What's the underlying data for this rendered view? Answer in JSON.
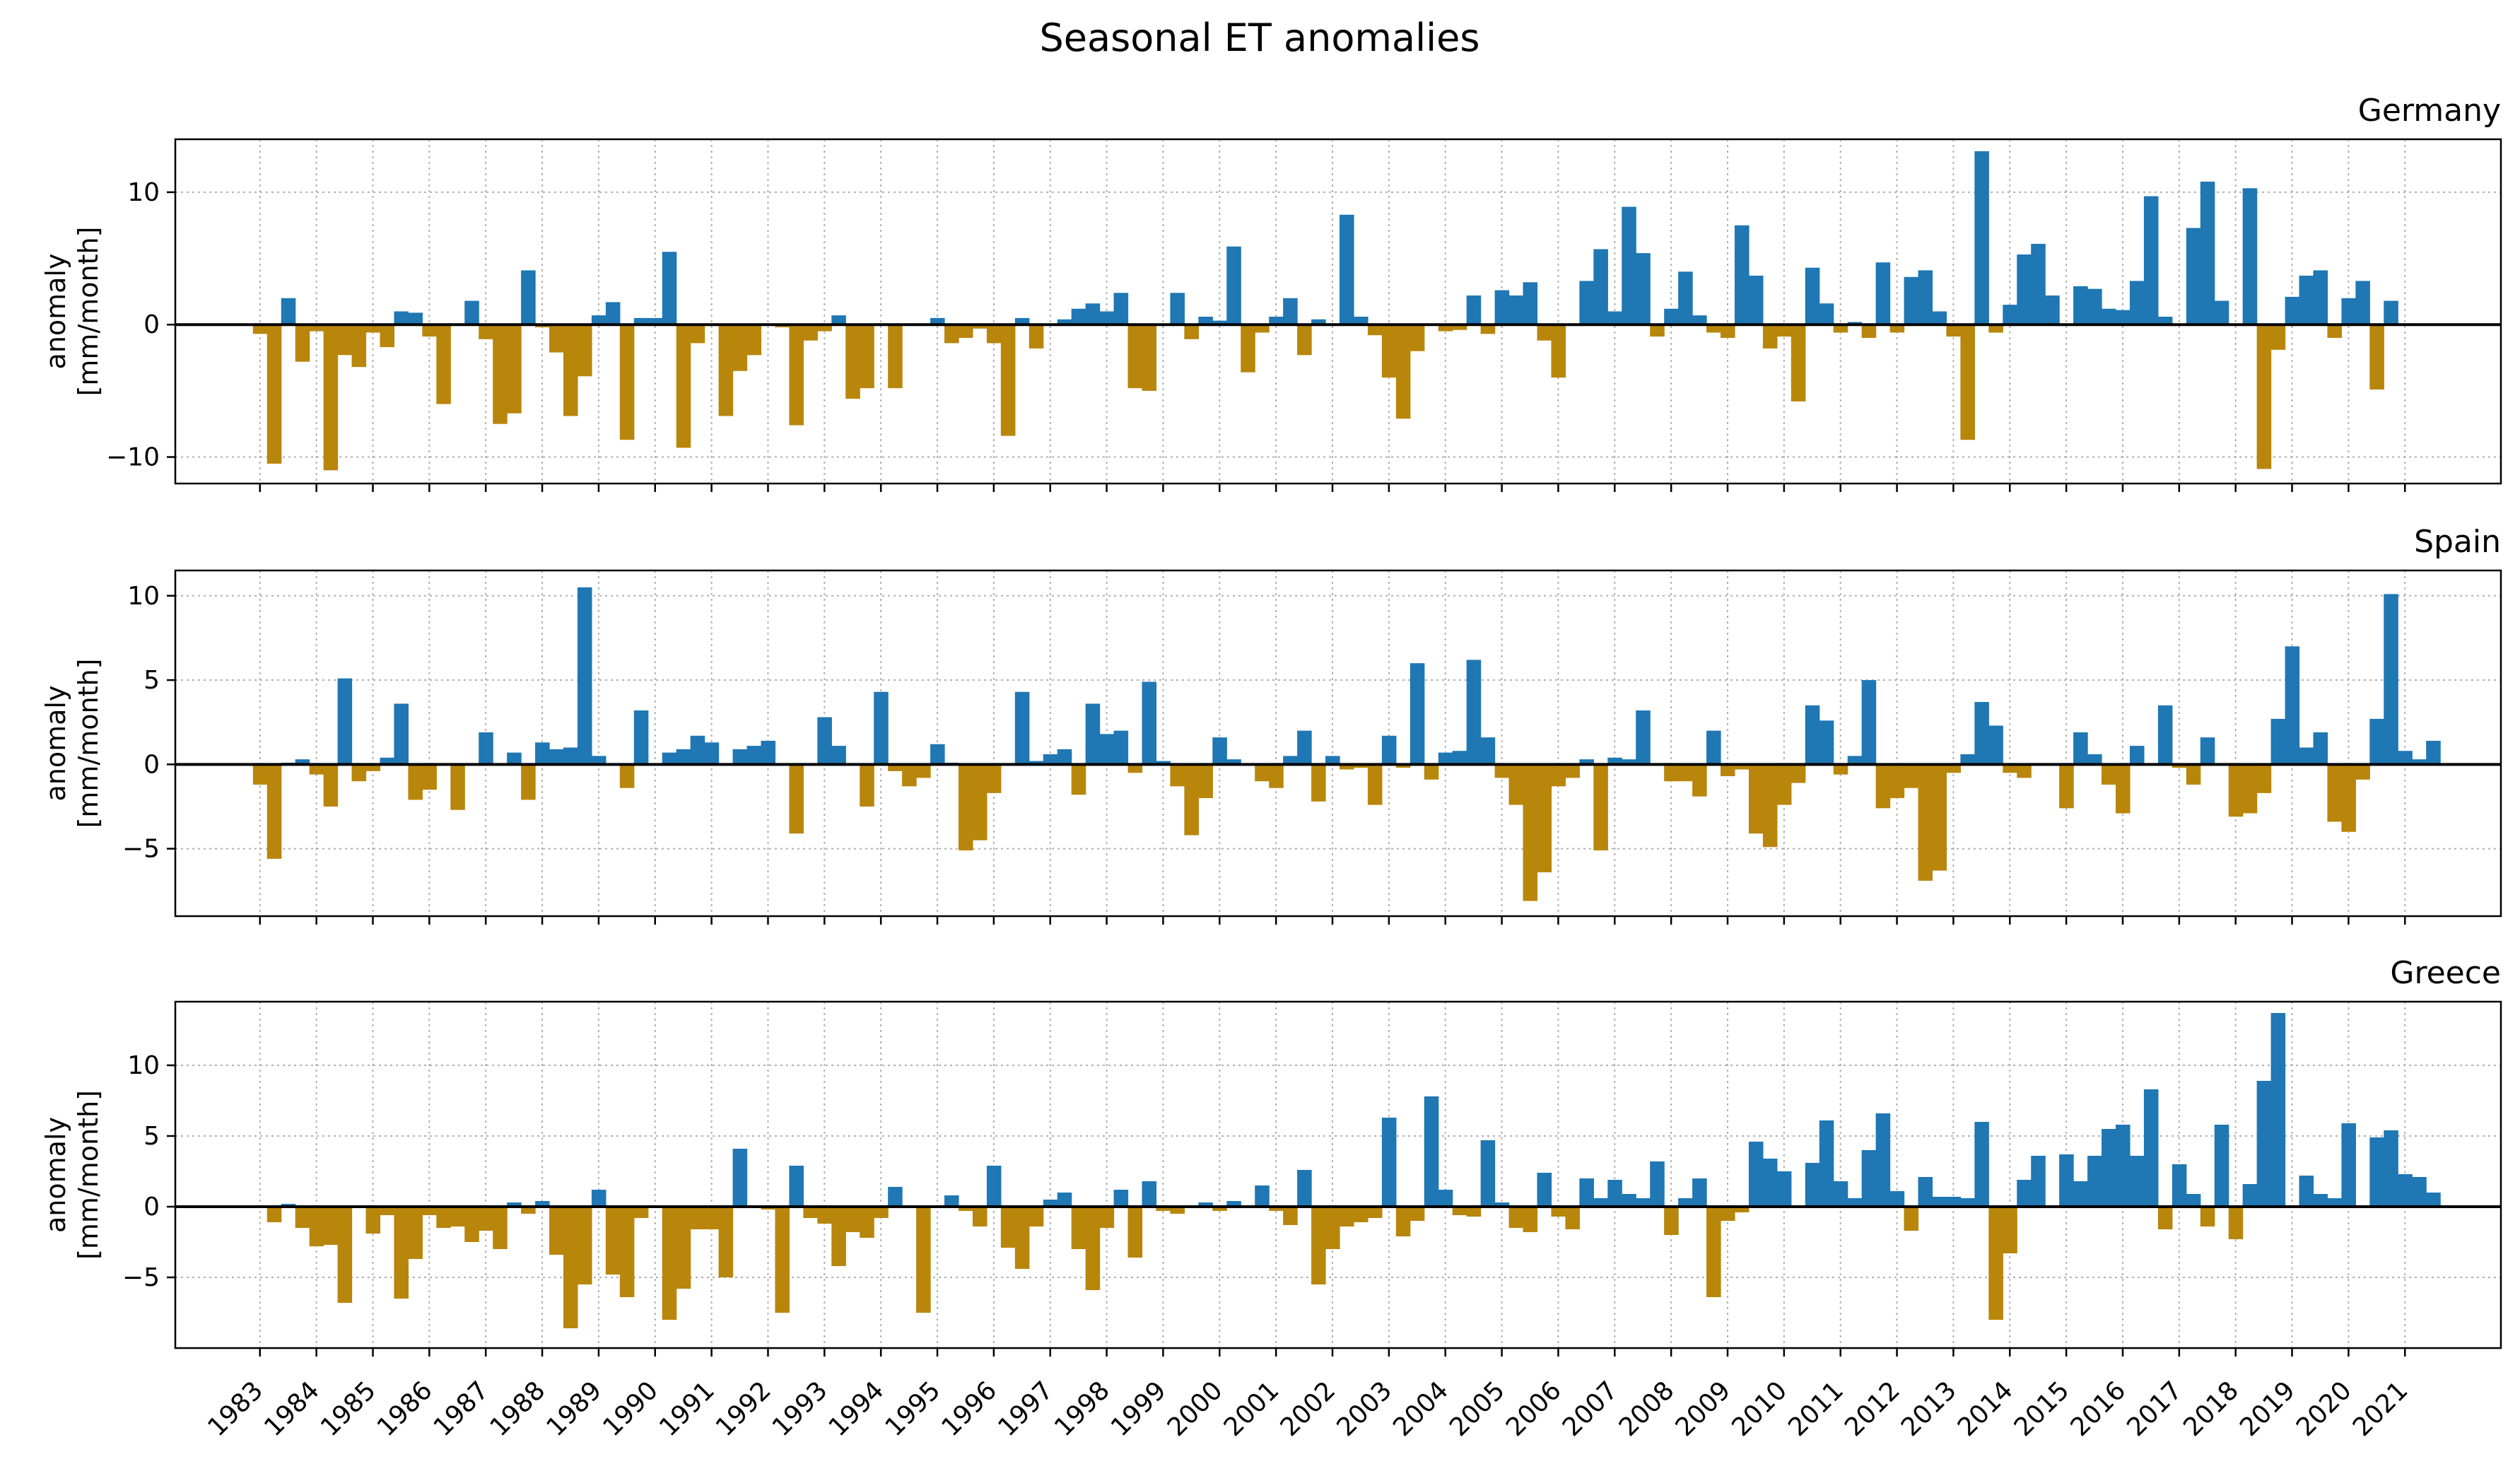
{
  "figure": {
    "title": "Seasonal ET anomalies",
    "colors": {
      "positive": "#1f77b4",
      "negative": "#b8860b",
      "zero_line": "#000000",
      "grid": "#b0b0b0"
    },
    "grid": true
  },
  "chart_data": [
    {
      "type": "bar",
      "title": "Germany",
      "ylabel": "anomaly\n[mm/month]",
      "x_tick_labels": [
        "1983",
        "1984",
        "1985",
        "1986",
        "1987",
        "1988",
        "1989",
        "1990",
        "1991",
        "1992",
        "1993",
        "1994",
        "1995",
        "1996",
        "1997",
        "1998",
        "1999",
        "2000",
        "2001",
        "2002",
        "2003",
        "2004",
        "2005",
        "2006",
        "2007",
        "2008",
        "2009",
        "2010",
        "2011",
        "2012",
        "2013",
        "2014",
        "2015",
        "2016",
        "2017",
        "2018",
        "2019",
        "2020",
        "2021"
      ],
      "show_x_tick_labels": false,
      "ylim": [
        -12,
        14
      ],
      "yticks": [
        -10,
        0,
        10
      ],
      "ytick_labels": [
        "−10",
        "0",
        "10"
      ],
      "bar_positions": "4 bars per year, 1983.0 to 2021.0 step 0.25",
      "values": [
        -0.7,
        -10.5,
        2.0,
        -2.8,
        -0.5,
        -11.0,
        -2.3,
        -3.2,
        -0.6,
        -1.7,
        1.0,
        0.9,
        -0.9,
        -6.0,
        0.0,
        1.8,
        -1.1,
        -7.5,
        -6.7,
        4.1,
        -0.2,
        -2.1,
        -6.9,
        -3.9,
        0.7,
        1.7,
        -8.7,
        0.5,
        0.5,
        5.5,
        -9.3,
        -1.4,
        0.0,
        -6.9,
        -3.5,
        -2.3,
        0.0,
        -0.2,
        -7.6,
        -1.2,
        -0.5,
        0.7,
        -5.6,
        -4.8,
        0.1,
        -4.8,
        0.0,
        0.0,
        0.5,
        -1.4,
        -1.0,
        -0.3,
        -1.4,
        -8.4,
        0.5,
        -1.8,
        0.0,
        0.4,
        1.2,
        1.6,
        1.0,
        2.4,
        -4.8,
        -5.0,
        0.0,
        2.4,
        -1.1,
        0.6,
        0.3,
        5.9,
        -3.6,
        -0.6,
        0.6,
        2.0,
        -2.3,
        0.4,
        0.1,
        8.3,
        0.6,
        -0.8,
        -4.0,
        -7.1,
        -2.0,
        0.0,
        -0.5,
        -0.4,
        2.2,
        -0.7,
        2.6,
        2.2,
        3.2,
        -1.2,
        -4.0,
        0.0,
        3.3,
        5.7,
        1.0,
        8.9,
        5.4,
        -0.9,
        1.2,
        4.0,
        0.7,
        -0.6,
        -1.0,
        7.5,
        3.7,
        -1.8,
        -0.9,
        -5.8,
        4.3,
        1.6,
        -0.6,
        0.2,
        -1.0,
        4.7,
        -0.6,
        3.6,
        4.1,
        1.0,
        -0.9,
        -8.7,
        13.1,
        -0.6,
        1.5,
        5.3,
        6.1,
        2.2,
        0.0,
        2.9,
        2.7,
        1.2,
        1.1,
        3.3,
        9.7,
        0.6,
        0.0,
        7.3,
        10.8,
        1.8,
        0.0,
        10.3,
        -10.9,
        -1.9,
        2.1,
        3.7,
        4.1,
        -1.0,
        2.0,
        3.3,
        -4.9,
        1.8,
        0.1
      ]
    },
    {
      "type": "bar",
      "title": "Spain",
      "ylabel": "anomaly\n[mm/month]",
      "x_tick_labels": [
        "1983",
        "1984",
        "1985",
        "1986",
        "1987",
        "1988",
        "1989",
        "1990",
        "1991",
        "1992",
        "1993",
        "1994",
        "1995",
        "1996",
        "1997",
        "1998",
        "1999",
        "2000",
        "2001",
        "2002",
        "2003",
        "2004",
        "2005",
        "2006",
        "2007",
        "2008",
        "2009",
        "2010",
        "2011",
        "2012",
        "2013",
        "2014",
        "2015",
        "2016",
        "2017",
        "2018",
        "2019",
        "2020",
        "2021"
      ],
      "show_x_tick_labels": false,
      "ylim": [
        -9,
        11.5
      ],
      "yticks": [
        -5,
        0,
        5,
        10
      ],
      "ytick_labels": [
        "−5",
        "0",
        "5",
        "10"
      ],
      "bar_positions": "4 bars per year, 1983.0 to 2021.0 step 0.25",
      "values": [
        -1.2,
        -5.6,
        0.1,
        0.3,
        -0.6,
        -2.5,
        5.1,
        -1.0,
        -0.4,
        0.4,
        3.6,
        -2.1,
        -1.5,
        0.0,
        -2.7,
        0.0,
        1.9,
        0.0,
        0.7,
        -2.1,
        1.3,
        0.9,
        1.0,
        10.5,
        0.5,
        0.0,
        -1.4,
        3.2,
        0.0,
        0.7,
        0.9,
        1.7,
        1.3,
        0.0,
        0.9,
        1.1,
        1.4,
        0.0,
        -4.1,
        0.0,
        2.8,
        1.1,
        0.0,
        -2.5,
        4.3,
        -0.4,
        -1.3,
        -0.8,
        1.2,
        0.1,
        -5.1,
        -4.5,
        -1.7,
        0.0,
        4.3,
        0.2,
        0.6,
        0.9,
        -1.8,
        3.6,
        1.8,
        2.0,
        -0.5,
        4.9,
        0.2,
        -1.3,
        -4.2,
        -2.0,
        1.6,
        0.3,
        0.0,
        -1.0,
        -1.4,
        0.5,
        2.0,
        -2.2,
        0.5,
        -0.3,
        -0.2,
        -2.4,
        1.7,
        -0.2,
        6.0,
        -0.9,
        0.7,
        0.8,
        6.2,
        1.6,
        -0.8,
        -2.4,
        -8.1,
        -6.4,
        -1.3,
        -0.8,
        0.3,
        -5.1,
        0.4,
        0.3,
        3.2,
        0.0,
        -1.0,
        -1.0,
        -1.9,
        2.0,
        -0.7,
        -0.3,
        -4.1,
        -4.9,
        -2.4,
        -1.1,
        3.5,
        2.6,
        -0.6,
        0.5,
        5.0,
        -2.6,
        -2.0,
        -1.4,
        -6.9,
        -6.3,
        -0.5,
        0.6,
        3.7,
        2.3,
        -0.5,
        -0.8,
        0.0,
        0.0,
        -2.6,
        1.9,
        0.6,
        -1.2,
        -2.9,
        1.1,
        0.0,
        3.5,
        -0.2,
        -1.2,
        1.6,
        0.0,
        -3.1,
        -2.9,
        -1.7,
        2.7,
        7.0,
        1.0,
        1.9,
        -3.4,
        -4.0,
        -0.9,
        2.7,
        10.1,
        0.8,
        0.3,
        1.4
      ]
    },
    {
      "type": "bar",
      "title": "Greece",
      "ylabel": "anomaly\n[mm/month]",
      "x_tick_labels": [
        "1983",
        "1984",
        "1985",
        "1986",
        "1987",
        "1988",
        "1989",
        "1990",
        "1991",
        "1992",
        "1993",
        "1994",
        "1995",
        "1996",
        "1997",
        "1998",
        "1999",
        "2000",
        "2001",
        "2002",
        "2003",
        "2004",
        "2005",
        "2006",
        "2007",
        "2008",
        "2009",
        "2010",
        "2011",
        "2012",
        "2013",
        "2014",
        "2015",
        "2016",
        "2017",
        "2018",
        "2019",
        "2020",
        "2021"
      ],
      "show_x_tick_labels": true,
      "ylim": [
        -10,
        14.5
      ],
      "yticks": [
        -5,
        0,
        5,
        10
      ],
      "ytick_labels": [
        "−5",
        "0",
        "5",
        "10"
      ],
      "bar_positions": "4 bars per year, 1983.0 to 2021.0 step 0.25",
      "values": [
        0.0,
        -1.1,
        0.2,
        -1.5,
        -2.8,
        -2.7,
        -6.8,
        0.0,
        -1.9,
        -0.6,
        -6.5,
        -3.7,
        -0.6,
        -1.5,
        -1.4,
        -2.5,
        -1.7,
        -3.0,
        0.3,
        -0.5,
        0.4,
        -3.4,
        -8.6,
        -5.5,
        1.2,
        -4.8,
        -6.4,
        -0.8,
        0.0,
        -8.0,
        -5.8,
        -1.6,
        -1.6,
        -5.0,
        4.1,
        0.1,
        -0.2,
        -7.5,
        2.9,
        -0.8,
        -1.2,
        -4.2,
        -1.8,
        -2.2,
        -0.8,
        1.4,
        0.0,
        -7.5,
        0.0,
        0.8,
        -0.3,
        -1.4,
        2.9,
        -2.9,
        -4.4,
        -1.4,
        0.5,
        1.0,
        -3.0,
        -5.9,
        -1.5,
        1.2,
        -3.6,
        1.8,
        -0.3,
        -0.5,
        0.0,
        0.3,
        -0.3,
        0.4,
        0.1,
        1.5,
        -0.3,
        -1.3,
        2.6,
        -5.5,
        -3.0,
        -1.4,
        -1.1,
        -0.8,
        6.3,
        -2.1,
        -1.0,
        7.8,
        1.2,
        -0.6,
        -0.7,
        4.7,
        0.3,
        -1.5,
        -1.8,
        2.4,
        -0.7,
        -1.6,
        2.0,
        0.6,
        1.9,
        0.9,
        0.6,
        3.2,
        -2.0,
        0.6,
        2.0,
        -6.4,
        -1.0,
        -0.4,
        4.6,
        3.4,
        2.5,
        0.0,
        3.1,
        6.1,
        1.8,
        0.6,
        4.0,
        6.6,
        1.1,
        -1.7,
        2.1,
        0.7,
        0.7,
        0.6,
        6.0,
        -8.0,
        -3.3,
        1.9,
        3.6,
        0.0,
        3.7,
        1.8,
        3.6,
        5.5,
        5.8,
        3.6,
        8.3,
        -1.6,
        3.0,
        0.9,
        -1.4,
        5.8,
        -2.3,
        1.6,
        8.9,
        13.7,
        0.0,
        2.2,
        0.9,
        0.6,
        5.9,
        0.0,
        4.9,
        5.4,
        2.3,
        2.1,
        1.0
      ]
    }
  ]
}
